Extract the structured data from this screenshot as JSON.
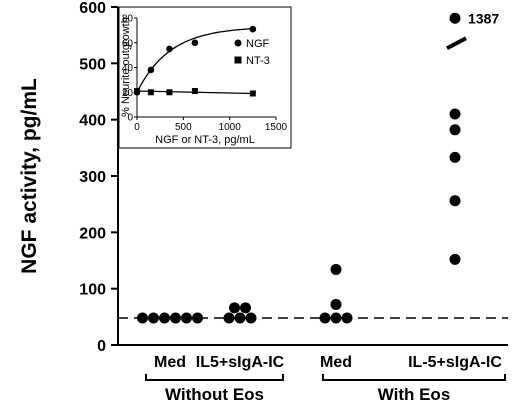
{
  "chart_data": {
    "type": "scatter",
    "ylabel": "NGF activity, pg/mL",
    "yticks": [
      0,
      100,
      200,
      300,
      400,
      500,
      600
    ],
    "ylim": [
      0,
      600
    ],
    "categories": [
      "Med",
      "IL5+sIgA-IC",
      "Med",
      "IL-5+sIgA-IC"
    ],
    "groups": [
      {
        "label": "Without Eos",
        "categories": [
          0,
          1
        ]
      },
      {
        "label": "With Eos",
        "categories": [
          2,
          3
        ]
      }
    ],
    "points": [
      [
        48,
        48,
        48,
        48,
        48,
        48
      ],
      [
        48,
        48,
        48,
        66,
        66
      ],
      [
        48,
        48,
        48,
        72,
        134
      ],
      [
        152,
        256,
        333,
        382,
        410,
        580
      ]
    ],
    "reference_line": 48,
    "axis_break_annotation": "1387",
    "inset": {
      "type": "line",
      "ylabel": "% Neurite outgrowth",
      "xlabel": "NGF or NT-3, pg/mL",
      "xticks": [
        0,
        500,
        1000,
        1500
      ],
      "yticks": [
        0,
        20,
        40,
        60,
        80
      ],
      "xlim": [
        0,
        1500
      ],
      "ylim": [
        0,
        80
      ],
      "legend_position": "right",
      "series": [
        {
          "name": "NGF",
          "marker": "circle",
          "x": [
            0,
            150,
            350,
            625,
            1250
          ],
          "y": [
            20,
            38,
            55,
            60,
            71
          ]
        },
        {
          "name": "NT-3",
          "marker": "square",
          "x": [
            0,
            150,
            350,
            625,
            1250
          ],
          "y": [
            21,
            20,
            20,
            21,
            19
          ]
        }
      ]
    }
  }
}
